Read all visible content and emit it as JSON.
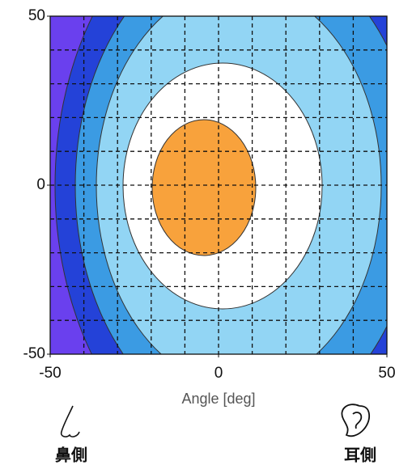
{
  "chart_data": {
    "type": "contour",
    "x_label": "Angle [deg]",
    "xlim": [
      -50,
      50
    ],
    "ylim": [
      -50,
      50
    ],
    "xticks": [
      -50,
      0,
      50
    ],
    "yticks": [
      -50,
      0,
      50
    ],
    "grid": true,
    "grid_x": [
      -40,
      -30,
      -20,
      -10,
      0,
      10,
      20,
      30,
      40
    ],
    "grid_y": [
      -40,
      -30,
      -20,
      -10,
      0,
      10,
      20,
      30,
      40
    ],
    "annotations": [
      "鼻側",
      "耳側"
    ]
  }
}
